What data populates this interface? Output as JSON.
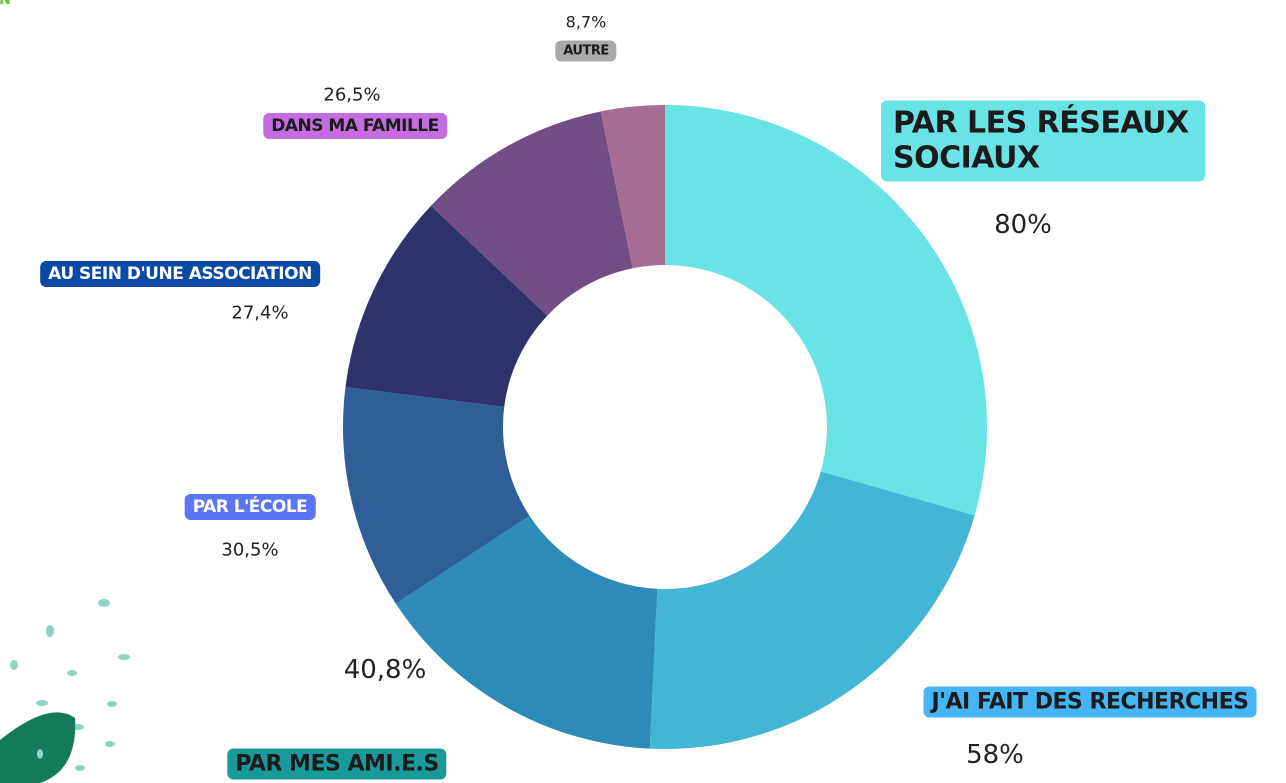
{
  "title": "ION",
  "chart_data": {
    "type": "pie",
    "categories": [
      "PAR LES RÉSEAUX SOCIAUX",
      "J'AI FAIT DES RECHERCHES",
      "PAR MES AMI.E.S",
      "PAR L'ÉCOLE",
      "AU SEIN D'UNE ASSOCIATION",
      "DANS MA FAMILLE",
      "AUTRE"
    ],
    "values": [
      80,
      58,
      40.8,
      30.5,
      27.4,
      26.5,
      8.7
    ],
    "value_labels": [
      "80%",
      "58%",
      "40,8%",
      "30,5%",
      "27,4%",
      "26,5%",
      "8,7%"
    ],
    "colors": [
      "#6ae3e6",
      "#42b6d4",
      "#2e8bb9",
      "#2f5f99",
      "#2f336b",
      "#714d85",
      "#a56c94"
    ],
    "label_colors": [
      "#6ae3e6",
      "#45b5f5",
      "#19999a",
      "#5a76f2",
      "#0a4aa5",
      "#c46de0",
      "#aaaaaa"
    ]
  }
}
